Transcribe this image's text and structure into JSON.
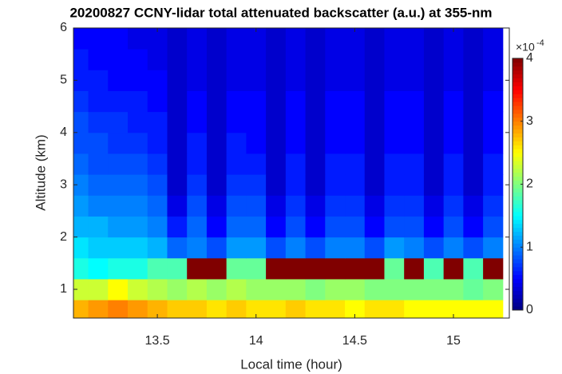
{
  "chart_data": {
    "type": "heatmap",
    "title": "20200827 CCNY-lidar total attenuated backscatter (a.u.) at 355-nm",
    "x_label": "Local time (hour)",
    "y_label": "Altitude (km)",
    "colorbar_multiplier": "×10",
    "colorbar_exponent": "-4",
    "colormap": "jet",
    "clim": [
      0,
      4
    ],
    "cticks": [
      0,
      1,
      2,
      3,
      4
    ],
    "xlim": [
      13.075,
      15.283
    ],
    "xticks": [
      13.5,
      14,
      14.5,
      15
    ],
    "ylim": [
      0.45,
      6
    ],
    "yticks": [
      1,
      2,
      3,
      4,
      5,
      6
    ],
    "x": [
      13.1,
      13.2,
      13.3,
      13.4,
      13.5,
      13.6,
      13.7,
      13.8,
      13.9,
      14.0,
      14.1,
      14.2,
      14.3,
      14.4,
      14.5,
      14.6,
      14.7,
      14.8,
      14.9,
      15.0,
      15.1,
      15.2
    ],
    "y": [
      0.6,
      1.0,
      1.4,
      1.8,
      2.2,
      2.6,
      3.0,
      3.4,
      3.8,
      4.2,
      4.6,
      5.0,
      5.4,
      5.8
    ],
    "z": [
      [
        2.8,
        2.9,
        3.0,
        2.9,
        2.8,
        2.7,
        2.7,
        2.6,
        2.7,
        2.6,
        2.6,
        2.7,
        2.6,
        2.6,
        2.5,
        2.6,
        2.6,
        2.5,
        2.5,
        2.5,
        2.5,
        2.5
      ],
      [
        2.3,
        2.3,
        2.5,
        2.3,
        2.2,
        2.1,
        2.2,
        2.1,
        2.2,
        2.1,
        2.1,
        2.1,
        2.0,
        2.1,
        2.1,
        2.0,
        2.0,
        2.0,
        2.0,
        2.0,
        1.9,
        2.0
      ],
      [
        1.6,
        1.5,
        1.6,
        1.6,
        1.8,
        1.8,
        4,
        4,
        1.9,
        1.9,
        4,
        4,
        4,
        4,
        4,
        4,
        1.9,
        4,
        1.8,
        4,
        1.8,
        4
      ],
      [
        1.4,
        1.3,
        1.3,
        1.3,
        1.2,
        0.9,
        1.0,
        0.8,
        1.1,
        1.1,
        0.8,
        1.0,
        0.8,
        1.0,
        1.0,
        0.8,
        1.1,
        1.0,
        0.8,
        1.0,
        0.8,
        1.0
      ],
      [
        1.2,
        1.2,
        1.1,
        1.1,
        1.0,
        0.6,
        0.9,
        0.5,
        0.9,
        0.9,
        0.5,
        0.8,
        0.5,
        0.8,
        0.8,
        0.5,
        0.8,
        0.8,
        0.5,
        0.8,
        0.5,
        0.8
      ],
      [
        1.1,
        1.0,
        1.0,
        1.0,
        0.9,
        0.4,
        0.8,
        0.4,
        0.8,
        0.8,
        0.4,
        0.7,
        0.4,
        0.7,
        0.7,
        0.4,
        0.7,
        0.7,
        0.4,
        0.7,
        0.4,
        0.7
      ],
      [
        1.0,
        0.9,
        0.9,
        0.9,
        0.8,
        0.3,
        0.7,
        0.3,
        0.7,
        0.7,
        0.3,
        0.6,
        0.3,
        0.6,
        0.6,
        0.3,
        0.6,
        0.6,
        0.3,
        0.6,
        0.3,
        0.6
      ],
      [
        0.9,
        0.8,
        0.8,
        0.8,
        0.7,
        0.3,
        0.6,
        0.3,
        0.6,
        0.6,
        0.3,
        0.6,
        0.3,
        0.6,
        0.6,
        0.3,
        0.6,
        0.6,
        0.3,
        0.6,
        0.3,
        0.6
      ],
      [
        0.8,
        0.8,
        0.7,
        0.7,
        0.6,
        0.3,
        0.6,
        0.3,
        0.6,
        0.5,
        0.3,
        0.5,
        0.3,
        0.5,
        0.5,
        0.3,
        0.5,
        0.5,
        0.3,
        0.5,
        0.3,
        0.5
      ],
      [
        0.8,
        0.7,
        0.7,
        0.6,
        0.6,
        0.3,
        0.5,
        0.3,
        0.5,
        0.5,
        0.3,
        0.5,
        0.3,
        0.5,
        0.5,
        0.3,
        0.5,
        0.5,
        0.3,
        0.5,
        0.3,
        0.5
      ],
      [
        0.7,
        0.6,
        0.6,
        0.6,
        0.5,
        0.3,
        0.5,
        0.3,
        0.5,
        0.5,
        0.3,
        0.5,
        0.3,
        0.5,
        0.5,
        0.3,
        0.5,
        0.5,
        0.3,
        0.5,
        0.3,
        0.5
      ],
      [
        0.6,
        0.6,
        0.5,
        0.5,
        0.5,
        0.3,
        0.4,
        0.3,
        0.4,
        0.4,
        0.3,
        0.4,
        0.3,
        0.4,
        0.4,
        0.3,
        0.4,
        0.4,
        0.3,
        0.4,
        0.3,
        0.4
      ],
      [
        0.6,
        0.5,
        0.5,
        0.5,
        0.4,
        0.3,
        0.4,
        0.3,
        0.4,
        0.4,
        0.3,
        0.4,
        0.3,
        0.4,
        0.4,
        0.3,
        0.4,
        0.4,
        0.3,
        0.4,
        0.3,
        0.4
      ],
      [
        0.5,
        0.5,
        0.5,
        0.4,
        0.4,
        0.3,
        0.4,
        0.3,
        0.4,
        0.4,
        0.3,
        0.4,
        0.3,
        0.4,
        0.4,
        0.3,
        0.4,
        0.4,
        0.3,
        0.4,
        0.3,
        0.4
      ]
    ]
  }
}
